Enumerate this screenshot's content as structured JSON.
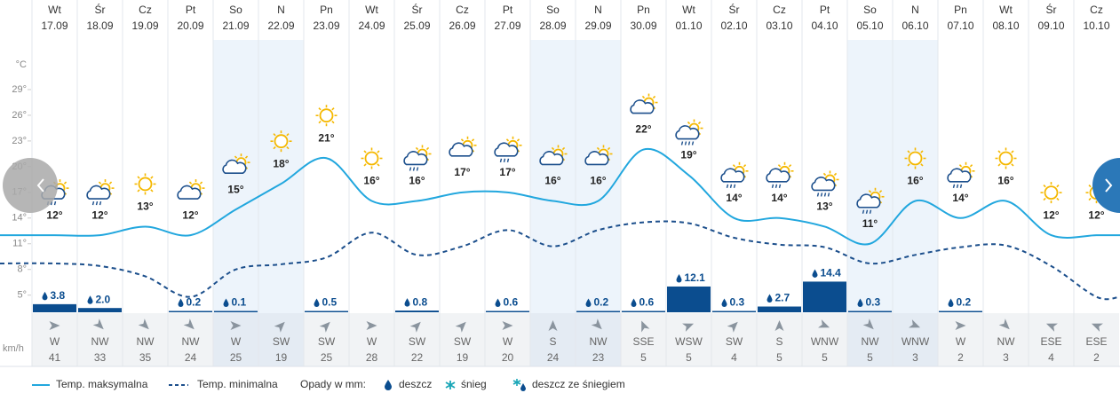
{
  "chart_data": {
    "type": "line",
    "weekdays": [
      "Wt",
      "Śr",
      "Cz",
      "Pt",
      "So",
      "N",
      "Pn",
      "Wt",
      "Śr",
      "Cz",
      "Pt",
      "So",
      "N",
      "Pn",
      "Wt",
      "Śr",
      "Cz",
      "Pt",
      "So",
      "N",
      "Pn",
      "Wt",
      "Śr",
      "Cz"
    ],
    "dates": [
      "17.09",
      "18.09",
      "19.09",
      "20.09",
      "21.09",
      "22.09",
      "23.09",
      "24.09",
      "25.09",
      "26.09",
      "27.09",
      "28.09",
      "29.09",
      "30.09",
      "01.10",
      "02.10",
      "03.10",
      "04.10",
      "05.10",
      "06.10",
      "07.10",
      "08.10",
      "09.10",
      "10.10"
    ],
    "y_unit": "°C",
    "ylim": [
      3,
      32
    ],
    "yticks": [
      {
        "value": 29,
        "label": "29°"
      },
      {
        "value": 26,
        "label": "26°"
      },
      {
        "value": 23,
        "label": "23°"
      },
      {
        "value": 20,
        "label": "20°"
      },
      {
        "value": 17,
        "label": "17°"
      },
      {
        "value": 14,
        "label": "14°"
      },
      {
        "value": 11,
        "label": "11°"
      },
      {
        "value": 8,
        "label": "8°"
      },
      {
        "value": 5,
        "label": "5°"
      }
    ],
    "series": [
      {
        "name": "Temp. maksymalna",
        "color": "#22a7de",
        "values": [
          12,
          12,
          13,
          12,
          15,
          18,
          21,
          16,
          16,
          17,
          17,
          16,
          16,
          22,
          19,
          14,
          14,
          13,
          11,
          16,
          14,
          16,
          12,
          12
        ],
        "value_labels": [
          "12°",
          "12°",
          "13°",
          "12°",
          "15°",
          "18°",
          "21°",
          "16°",
          "16°",
          "17°",
          "17°",
          "16°",
          "16°",
          "22°",
          "19°",
          "14°",
          "14°",
          "13°",
          "11°",
          "16°",
          "14°",
          "16°",
          "12°",
          "12°"
        ]
      },
      {
        "name": "Temp. minimalna",
        "color": "#1c4f8c",
        "values": [
          8.7,
          8.4,
          7.2,
          4.8,
          8.0,
          8.6,
          9.4,
          12.3,
          9.7,
          10.7,
          12.6,
          10.7,
          12.6,
          13.5,
          13.4,
          11.7,
          10.9,
          10.6,
          8.7,
          9.7,
          10.6,
          10.8,
          8.4,
          4.8
        ]
      }
    ],
    "precipitation": {
      "name": "Opady w mm:",
      "color": "#0b4d8f",
      "values": [
        3.8,
        2.0,
        null,
        0.2,
        0.1,
        null,
        0.5,
        null,
        0.8,
        null,
        0.6,
        null,
        0.2,
        0.6,
        12.1,
        0.3,
        2.7,
        14.4,
        0.3,
        null,
        0.2,
        null,
        null,
        null
      ],
      "value_labels": [
        "3.8",
        "2.0",
        null,
        "0.2",
        "0.1",
        null,
        "0.5",
        null,
        "0.8",
        null,
        "0.6",
        null,
        "0.2",
        "0.6",
        "12.1",
        "0.3",
        "2.7",
        "14.4",
        "0.3",
        null,
        "0.2",
        null,
        null,
        null
      ]
    },
    "wind": {
      "unit": "km/h",
      "directions": [
        "W",
        "NW",
        "NW",
        "NW",
        "W",
        "SW",
        "SW",
        "W",
        "SW",
        "SW",
        "W",
        "S",
        "NW",
        "SSE",
        "WSW",
        "SW",
        "S",
        "WNW",
        "NW",
        "WNW",
        "W",
        "NW",
        "ESE",
        "ESE"
      ],
      "values": [
        41,
        33,
        35,
        24,
        25,
        19,
        25,
        28,
        22,
        19,
        20,
        24,
        23,
        5,
        5,
        4,
        5,
        5,
        5,
        3,
        2,
        3,
        4,
        2
      ]
    },
    "legend": {
      "rain": "deszcz",
      "snow": "śnieg",
      "sleet": "deszcz ze śniegiem"
    }
  }
}
